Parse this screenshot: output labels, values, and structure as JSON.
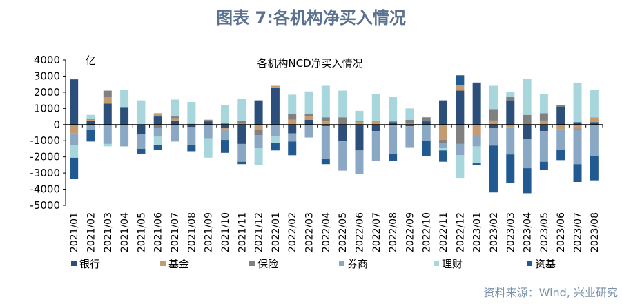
{
  "page": {
    "title": "图表 7:各机构净买入情况",
    "source": "资料来源：Wind, 兴业研究"
  },
  "chart_data": {
    "type": "bar",
    "stacked": true,
    "title": "各机构NCD净买入情况",
    "unit_label": "亿",
    "ylim": [
      -5000,
      4000
    ],
    "yticks": [
      4000,
      3000,
      2000,
      1000,
      0,
      -1000,
      -2000,
      -3000,
      -4000,
      -5000
    ],
    "grid": false,
    "legend_position": "bottom",
    "categories": [
      "2021/01",
      "2021/02",
      "2021/03",
      "2021/04",
      "2021/05",
      "2021/06",
      "2021/07",
      "2021/08",
      "2021/09",
      "2021/10",
      "2021/11",
      "2021/12",
      "2022/01",
      "2022/02",
      "2022/03",
      "2022/04",
      "2022/05",
      "2022/06",
      "2022/07",
      "2022/08",
      "2022/09",
      "2022/10",
      "2022/11",
      "2022/12",
      "2023/01",
      "2023/02",
      "2023/03",
      "2023/04",
      "2023/05",
      "2023/06",
      "2023/07",
      "2023/08"
    ],
    "series": [
      {
        "name": "银行",
        "color": "#2b4f7a",
        "values": [
          2800,
          250,
          1300,
          1050,
          -600,
          500,
          250,
          -150,
          200,
          -200,
          -1200,
          1500,
          2300,
          -550,
          300,
          -100,
          -1000,
          -1600,
          -400,
          150,
          -100,
          200,
          1500,
          2100,
          2600,
          -200,
          1500,
          -900,
          -400,
          1100,
          150,
          150
        ]
      },
      {
        "name": "基金",
        "color": "#c59a6e",
        "values": [
          -550,
          50,
          400,
          0,
          0,
          200,
          150,
          -50,
          50,
          -100,
          50,
          -350,
          100,
          300,
          200,
          200,
          -50,
          150,
          250,
          -100,
          50,
          0,
          -950,
          350,
          -700,
          250,
          -150,
          0,
          250,
          -300,
          -250,
          300
        ]
      },
      {
        "name": "保险",
        "color": "#808080",
        "values": [
          0,
          50,
          400,
          50,
          0,
          -200,
          100,
          50,
          50,
          100,
          200,
          -300,
          0,
          350,
          150,
          250,
          450,
          50,
          0,
          50,
          250,
          250,
          -200,
          -1200,
          0,
          700,
          200,
          600,
          450,
          100,
          -50,
          0
        ]
      },
      {
        "name": "券商",
        "color": "#8aa7c3",
        "values": [
          -700,
          -350,
          -1200,
          -1350,
          -900,
          -550,
          -1050,
          -1050,
          -850,
          -650,
          -1100,
          -800,
          -700,
          -500,
          -800,
          -2000,
          -1800,
          -1450,
          -1850,
          -1700,
          -1300,
          -1000,
          -300,
          -700,
          -650,
          -1100,
          -1700,
          -1800,
          -1900,
          -1250,
          -2150,
          -1950
        ]
      },
      {
        "name": "理财",
        "color": "#a7d7dc",
        "values": [
          -800,
          250,
          -150,
          1050,
          1500,
          -500,
          1050,
          1350,
          -1200,
          1100,
          1350,
          -1050,
          -450,
          1200,
          1400,
          1950,
          1650,
          650,
          1650,
          1500,
          700,
          0,
          -150,
          -1400,
          -1050,
          1450,
          300,
          2250,
          1200,
          0,
          2450,
          1700
        ]
      },
      {
        "name": "资基",
        "color": "#215a90",
        "values": [
          -1300,
          -700,
          0,
          0,
          -300,
          -300,
          0,
          -400,
          0,
          -800,
          -150,
          0,
          -450,
          -850,
          0,
          -350,
          0,
          0,
          0,
          -450,
          0,
          -950,
          -700,
          600,
          -100,
          -2900,
          -1750,
          -1550,
          -500,
          -650,
          -1100,
          -1500
        ]
      }
    ]
  }
}
